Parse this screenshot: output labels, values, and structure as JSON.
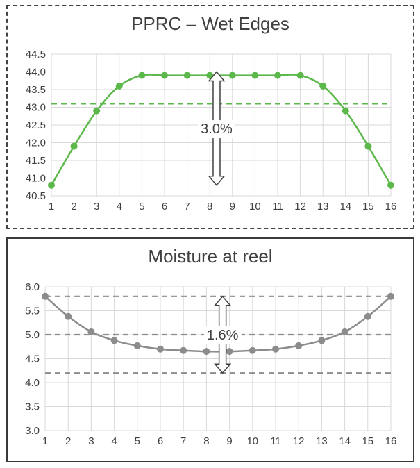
{
  "chart_data": [
    {
      "type": "line",
      "title": "PPRC – Wet Edges",
      "x": [
        1,
        2,
        3,
        4,
        5,
        6,
        7,
        8,
        9,
        10,
        11,
        12,
        13,
        14,
        15,
        16
      ],
      "series": [
        {
          "values": [
            40.8,
            41.9,
            42.9,
            43.6,
            43.9,
            43.9,
            43.9,
            43.9,
            43.9,
            43.9,
            43.9,
            43.9,
            43.6,
            42.9,
            41.9,
            40.8
          ],
          "color": "#5cb84a"
        }
      ],
      "reference_lines": [
        43.1
      ],
      "annotation": {
        "text": "3.0%",
        "x": 8.3,
        "y_from": 40.8,
        "y_to": 44.0
      },
      "ylim": [
        40.5,
        44.5
      ],
      "yticks": [
        "40.5",
        "41.0",
        "41.5",
        "42.0",
        "42.5",
        "43.0",
        "43.5",
        "44.0",
        "44.5"
      ],
      "xticks": [
        "1",
        "2",
        "3",
        "4",
        "5",
        "6",
        "7",
        "8",
        "9",
        "10",
        "11",
        "12",
        "13",
        "14",
        "15",
        "16"
      ],
      "grid": true,
      "line_color": "#5cb84a"
    },
    {
      "type": "line",
      "title": "Moisture at reel",
      "x": [
        1,
        2,
        3,
        4,
        5,
        6,
        7,
        8,
        9,
        10,
        11,
        12,
        13,
        14,
        15,
        16
      ],
      "series": [
        {
          "values": [
            5.8,
            5.38,
            5.06,
            4.88,
            4.77,
            4.7,
            4.67,
            4.65,
            4.65,
            4.67,
            4.7,
            4.77,
            4.88,
            5.06,
            5.38,
            5.8
          ],
          "color": "#8c8c8c"
        }
      ],
      "reference_lines": [
        5.8,
        5.0,
        4.2
      ],
      "annotation": {
        "text": "1.6%",
        "x": 8.7,
        "y_from": 4.2,
        "y_to": 5.8
      },
      "ylim": [
        3.0,
        6.0
      ],
      "yticks": [
        "3.0",
        "3.5",
        "4.0",
        "4.5",
        "5.0",
        "5.5",
        "6.0"
      ],
      "xticks": [
        "1",
        "2",
        "3",
        "4",
        "5",
        "6",
        "7",
        "8",
        "9",
        "10",
        "11",
        "12",
        "13",
        "14",
        "15",
        "16"
      ],
      "grid": true,
      "line_color": "#8c8c8c"
    }
  ]
}
